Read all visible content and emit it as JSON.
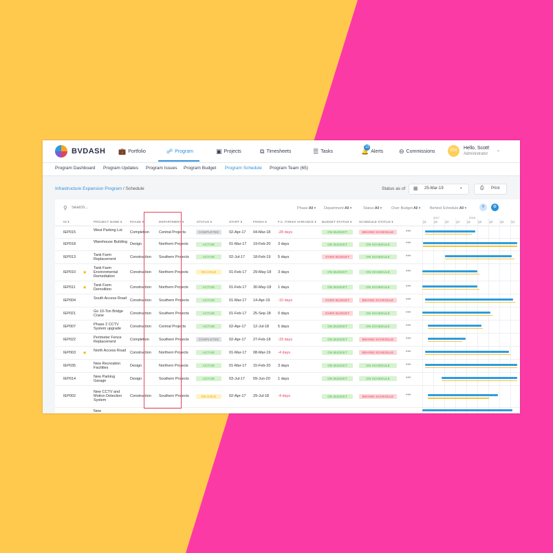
{
  "brand": "BVDASH",
  "nav": {
    "items": [
      {
        "label": "Portfolio",
        "icon": "briefcase-icon",
        "glyph": "💼"
      },
      {
        "label": "Program",
        "icon": "hierarchy-icon",
        "glyph": "☍"
      },
      {
        "label": "Projects",
        "icon": "projects-icon",
        "glyph": "▣"
      },
      {
        "label": "Timesheets",
        "icon": "timesheets-icon",
        "glyph": "⧉"
      },
      {
        "label": "Tasks",
        "icon": "tasks-icon",
        "glyph": "☰"
      },
      {
        "label": "Alerts",
        "icon": "bell-icon",
        "glyph": "🔔"
      },
      {
        "label": "Commissions",
        "icon": "chat-icon",
        "glyph": "⊖"
      }
    ],
    "alert_count": "13",
    "user": {
      "initials": "EM",
      "greeting": "Hello, Scott!",
      "role": "Administrator"
    }
  },
  "subnav": [
    "Program Dashboard",
    "Program Updates",
    "Program Issues",
    "Program Budget",
    "Program Schedule",
    "Program Team (65)"
  ],
  "breadcrumb": {
    "link": "Infrastructure Expansion Program",
    "current": " / Schedule"
  },
  "status_as_of": {
    "label": "Status as of",
    "date": "25-Mar-19"
  },
  "print_label": "Print",
  "search": {
    "placeholder": "Search..."
  },
  "filters": [
    {
      "label": "Phase",
      "value": "All"
    },
    {
      "label": "Department",
      "value": "All"
    },
    {
      "label": "Status",
      "value": "All"
    },
    {
      "label": "Over Budget",
      "value": "All"
    },
    {
      "label": "Behind Schedule",
      "value": "All"
    }
  ],
  "columns": [
    "ID",
    "PROJECT NAME",
    "PHASE",
    "DEPARTMENT",
    "STATUS",
    "START",
    "FINISH",
    "F.C. FINISH VARIANCE",
    "BUDGET STATUS",
    "SCHEDULE STATUS"
  ],
  "gantt": {
    "years": [
      "2017",
      "2018"
    ],
    "quarters": [
      "Q1",
      "Q2",
      "Q3",
      "Q4",
      "Q1",
      "Q2",
      "Q3",
      "Q4",
      "Q1"
    ]
  },
  "rows": [
    {
      "id": "IEP015",
      "starred": false,
      "name": "West Parking Lot",
      "phase": "Completion",
      "dept": "Central Projects",
      "status": "COMPLETED",
      "start": "02-Apr-17",
      "finish": "04-Mar-18",
      "var": "-28 days",
      "var_neg": true,
      "budget": "ON BUDGET",
      "schedule": "BEHIND SCHEDULE",
      "blue": [
        0.03,
        0.56
      ],
      "yellow": [
        0.03,
        0.52
      ]
    },
    {
      "id": "IEP018",
      "starred": false,
      "name": "Warehouse Building",
      "phase": "Design",
      "dept": "Northern Projects",
      "status": "ACTIVE",
      "start": "01-Mar-17",
      "finish": "19-Feb-20",
      "var": "3 days",
      "var_neg": false,
      "budget": "ON BUDGET",
      "schedule": "ON SCHEDULE",
      "blue": [
        0.01,
        1.0
      ],
      "yellow": [
        0.01,
        1.0
      ]
    },
    {
      "id": "IEP013",
      "starred": false,
      "name": "Tank Farm Replacement",
      "phase": "Construction",
      "dept": "Southern Projects",
      "status": "ACTIVE",
      "start": "02-Jul-17",
      "finish": "18-Feb-19",
      "var": "5 days",
      "var_neg": false,
      "budget": "OVER BUDGET",
      "schedule": "ON SCHEDULE",
      "blue": [
        0.24,
        0.94
      ],
      "yellow": [
        0.24,
        0.97
      ]
    },
    {
      "id": "IEP010",
      "starred": true,
      "name": "Tank Farm Environmental Remediation",
      "phase": "Construction",
      "dept": "Northern Projects",
      "status": "ON HOLD",
      "start": "01-Feb-17",
      "finish": "29-May-18",
      "var": "3 days",
      "var_neg": false,
      "budget": "ON BUDGET",
      "schedule": "ON SCHEDULE",
      "blue": [
        0.0,
        0.58
      ],
      "yellow": [
        0.0,
        0.6
      ]
    },
    {
      "id": "IEP011",
      "starred": true,
      "name": "Tank Farm Demolition",
      "phase": "Construction",
      "dept": "Northern Projects",
      "status": "ACTIVE",
      "start": "01-Feb-17",
      "finish": "30-May-18",
      "var": "1 days",
      "var_neg": false,
      "budget": "ON BUDGET",
      "schedule": "ON SCHEDULE",
      "blue": [
        0.0,
        0.58
      ],
      "yellow": [
        0.0,
        0.6
      ]
    },
    {
      "id": "IEP004",
      "starred": false,
      "name": "South Access Road",
      "phase": "Construction",
      "dept": "Southern Projects",
      "status": "ACTIVE",
      "start": "01-Mar-17",
      "finish": "14-Apr-19",
      "var": "-10 days",
      "var_neg": true,
      "budget": "OVER BUDGET",
      "schedule": "BEHIND SCHEDULE",
      "blue": [
        0.03,
        0.96
      ],
      "yellow": [
        0.03,
        0.98
      ]
    },
    {
      "id": "IEP021",
      "starred": false,
      "name": "Go 10-Ton Bridge Crane",
      "phase": "Construction",
      "dept": "Southern Projects",
      "status": "ACTIVE",
      "start": "01-Feb-17",
      "finish": "25-Sep-18",
      "var": "0 days",
      "var_neg": false,
      "budget": "OVER BUDGET",
      "schedule": "ON SCHEDULE",
      "blue": [
        0.0,
        0.72
      ],
      "yellow": [
        0.0,
        0.74
      ]
    },
    {
      "id": "IEP007",
      "starred": false,
      "name": "Phase 2 CCTV System upgrade",
      "phase": "Construction",
      "dept": "Central Projects",
      "status": "ACTIVE",
      "start": "02-Apr-17",
      "finish": "12-Jul-18",
      "var": "5 days",
      "var_neg": false,
      "budget": "ON BUDGET",
      "schedule": "ON SCHEDULE",
      "blue": [
        0.06,
        0.62
      ],
      "yellow": [
        0.06,
        0.64
      ]
    },
    {
      "id": "IEP022",
      "starred": false,
      "name": "Perimeter Fence Replacement",
      "phase": "Completion",
      "dept": "Southern Projects",
      "status": "COMPLETED",
      "start": "02-Apr-17",
      "finish": "27-Feb-18",
      "var": "-33 days",
      "var_neg": true,
      "budget": "ON BUDGET",
      "schedule": "BEHIND SCHEDULE",
      "blue": [
        0.06,
        0.46
      ],
      "yellow": [
        0.06,
        0.42
      ]
    },
    {
      "id": "IEP003",
      "starred": true,
      "name": "North Access Road",
      "phase": "Construction",
      "dept": "Northern Projects",
      "status": "ACTIVE",
      "start": "01-Mar-17",
      "finish": "08-Mar-19",
      "var": "-4 days",
      "var_neg": true,
      "budget": "ON BUDGET",
      "schedule": "BEHIND SCHEDULE",
      "blue": [
        0.03,
        0.91
      ],
      "yellow": [
        0.03,
        0.93
      ]
    },
    {
      "id": "IEP035",
      "starred": false,
      "name": "New Recreation Facilities",
      "phase": "Design",
      "dept": "Northern Projects",
      "status": "ACTIVE",
      "start": "01-Mar-17",
      "finish": "15-Feb-20",
      "var": "3 days",
      "var_neg": false,
      "budget": "ON BUDGET",
      "schedule": "ON SCHEDULE",
      "blue": [
        0.03,
        1.0
      ],
      "yellow": [
        0.03,
        1.0
      ]
    },
    {
      "id": "IEP014",
      "starred": false,
      "name": "New Parking Garage",
      "phase": "Design",
      "dept": "Southern Projects",
      "status": "ACTIVE",
      "start": "03-Jul-17",
      "finish": "09-Jun-20",
      "var": "1 days",
      "var_neg": false,
      "budget": "ON BUDGET",
      "schedule": "ON SCHEDULE",
      "blue": [
        0.2,
        1.0
      ],
      "yellow": [
        0.2,
        1.0
      ]
    },
    {
      "id": "IEP002",
      "starred": false,
      "name": "New CCTV and Motion Detection System",
      "phase": "Construction",
      "dept": "Southern Projects",
      "status": "ON HOLD",
      "start": "02-Apr-17",
      "finish": "29-Jul-18",
      "var": "-4 days",
      "var_neg": true,
      "budget": "ON BUDGET",
      "schedule": "BEHIND SCHEDULE",
      "blue": [
        0.06,
        0.8
      ],
      "yellow": [
        0.06,
        0.7
      ]
    },
    {
      "id": "",
      "starred": false,
      "name": "New",
      "phase": "",
      "dept": "",
      "status": "",
      "start": "",
      "finish": "",
      "var": "",
      "var_neg": false,
      "budget": "",
      "schedule": "",
      "blue": [
        0.0,
        0.95
      ],
      "yellow": [
        0.0,
        0.0
      ]
    }
  ]
}
